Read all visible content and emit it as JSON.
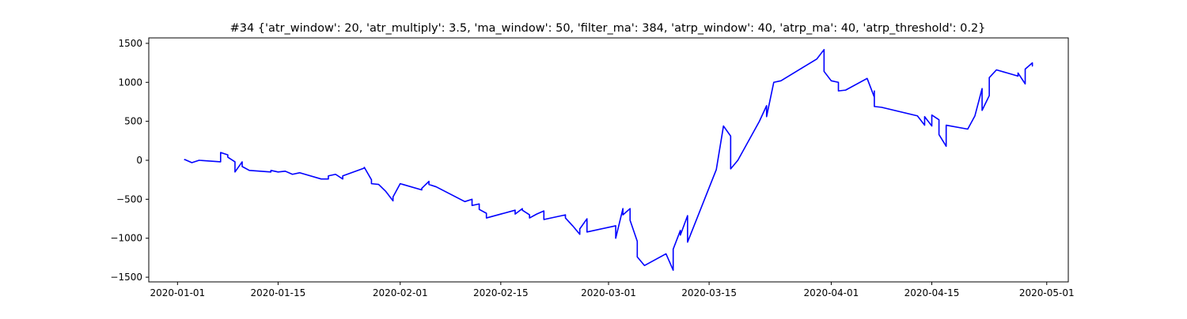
{
  "colors": {
    "line": "#0000ff",
    "axes": "#000000",
    "background": "#ffffff"
  },
  "chart_data": {
    "type": "line",
    "title": "#34 {'atr_window': 20, 'atr_multiply': 3.5, 'ma_window': 50, 'filter_ma': 384, 'atrp_window': 40, 'atrp_ma': 40, 'atrp_threshold': 0.2}",
    "xlabel": "",
    "ylabel": "",
    "x_scale": "date",
    "xlim": [
      "2019-12-28",
      "2020-05-04"
    ],
    "ylim": [
      -1560,
      1570
    ],
    "grid": false,
    "legend": "none",
    "x_ticks": [
      "2020-01-01",
      "2020-01-15",
      "2020-02-01",
      "2020-02-15",
      "2020-03-01",
      "2020-03-15",
      "2020-04-01",
      "2020-04-15",
      "2020-05-01"
    ],
    "y_ticks": [
      1500,
      1000,
      500,
      0,
      -500,
      -1000,
      -1500
    ],
    "series": [
      {
        "color": "#0000ff",
        "x": [
          "2020-01-02",
          "2020-01-02",
          "2020-01-03",
          "2020-01-04",
          "2020-01-07",
          "2020-01-07",
          "2020-01-08",
          "2020-01-08",
          "2020-01-09",
          "2020-01-09",
          "2020-01-10",
          "2020-01-10",
          "2020-01-11",
          "2020-01-14",
          "2020-01-14",
          "2020-01-15",
          "2020-01-16",
          "2020-01-17",
          "2020-01-18",
          "2020-01-21",
          "2020-01-22",
          "2020-01-22",
          "2020-01-23",
          "2020-01-24",
          "2020-01-24",
          "2020-01-27",
          "2020-01-27",
          "2020-01-28",
          "2020-01-28",
          "2020-01-29",
          "2020-01-30",
          "2020-01-31",
          "2020-01-31",
          "2020-02-01",
          "2020-02-04",
          "2020-02-04",
          "2020-02-05",
          "2020-02-05",
          "2020-02-06",
          "2020-02-10",
          "2020-02-11",
          "2020-02-11",
          "2020-02-12",
          "2020-02-12",
          "2020-02-13",
          "2020-02-13",
          "2020-02-17",
          "2020-02-17",
          "2020-02-18",
          "2020-02-18",
          "2020-02-19",
          "2020-02-19",
          "2020-02-20",
          "2020-02-21",
          "2020-02-21",
          "2020-02-24",
          "2020-02-24",
          "2020-02-25",
          "2020-02-26",
          "2020-02-26",
          "2020-02-27",
          "2020-02-27",
          "2020-03-02",
          "2020-03-02",
          "2020-03-03",
          "2020-03-03",
          "2020-03-04",
          "2020-03-04",
          "2020-03-05",
          "2020-03-05",
          "2020-03-06",
          "2020-03-09",
          "2020-03-10",
          "2020-03-10",
          "2020-03-11",
          "2020-03-11",
          "2020-03-12",
          "2020-03-12",
          "2020-03-16",
          "2020-03-17",
          "2020-03-18",
          "2020-03-18",
          "2020-03-19",
          "2020-03-22",
          "2020-03-23",
          "2020-03-23",
          "2020-03-24",
          "2020-03-25",
          "2020-03-30",
          "2020-03-31",
          "2020-03-31",
          "2020-04-01",
          "2020-04-02",
          "2020-04-02",
          "2020-04-03",
          "2020-04-06",
          "2020-04-07",
          "2020-04-07",
          "2020-04-07",
          "2020-04-08",
          "2020-04-13",
          "2020-04-14",
          "2020-04-14",
          "2020-04-15",
          "2020-04-15",
          "2020-04-16",
          "2020-04-16",
          "2020-04-17",
          "2020-04-17",
          "2020-04-20",
          "2020-04-21",
          "2020-04-22",
          "2020-04-22",
          "2020-04-23",
          "2020-04-23",
          "2020-04-24",
          "2020-04-27",
          "2020-04-27",
          "2020-04-28",
          "2020-04-28",
          "2020-04-29",
          "2020-04-29",
          "2020-04-29"
        ],
        "y": [
          0,
          10,
          -30,
          0,
          -20,
          100,
          70,
          40,
          -20,
          -150,
          -20,
          -80,
          -130,
          -150,
          -130,
          -150,
          -140,
          -180,
          -160,
          -240,
          -240,
          -200,
          -180,
          -240,
          -200,
          -100,
          -90,
          -250,
          -300,
          -310,
          -400,
          -520,
          -470,
          -300,
          -380,
          -360,
          -270,
          -310,
          -340,
          -530,
          -500,
          -580,
          -560,
          -630,
          -680,
          -740,
          -640,
          -690,
          -620,
          -640,
          -700,
          -740,
          -690,
          -650,
          -760,
          -700,
          -740,
          -840,
          -950,
          -880,
          -750,
          -920,
          -840,
          -1000,
          -620,
          -700,
          -620,
          -770,
          -1040,
          -1240,
          -1350,
          -1200,
          -1410,
          -1140,
          -900,
          -960,
          -710,
          -1050,
          -120,
          440,
          310,
          -110,
          0,
          500,
          700,
          560,
          1000,
          1020,
          1300,
          1420,
          1140,
          1020,
          1000,
          890,
          900,
          1050,
          810,
          890,
          690,
          680,
          570,
          450,
          560,
          440,
          580,
          520,
          330,
          180,
          450,
          400,
          570,
          920,
          640,
          830,
          1060,
          1160,
          1080,
          1120,
          980,
          1170,
          1250,
          1210,
          1230
        ]
      }
    ]
  }
}
